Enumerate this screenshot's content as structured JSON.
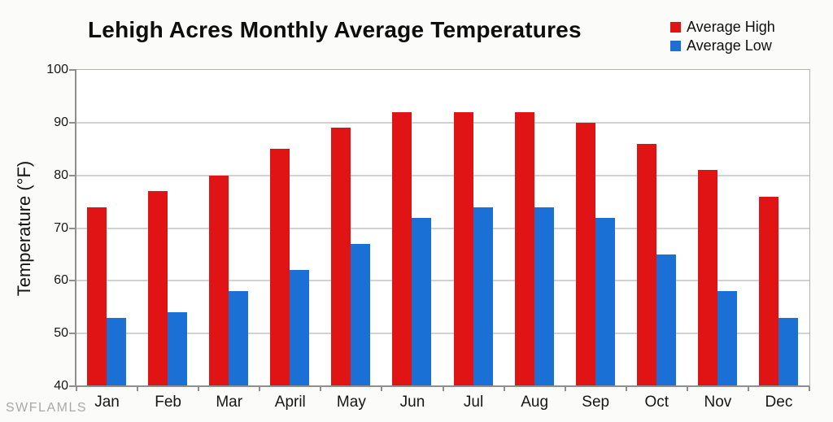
{
  "chart_data": {
    "type": "bar",
    "title": "Lehigh Acres Monthly Average Temperatures",
    "ylabel": "Temperature (°F)",
    "xlabel": "",
    "categories": [
      "Jan",
      "Feb",
      "Mar",
      "April",
      "May",
      "Jun",
      "Jul",
      "Aug",
      "Sep",
      "Oct",
      "Nov",
      "Dec"
    ],
    "series": [
      {
        "name": "Average High",
        "color": "#e01414",
        "values": [
          74,
          77,
          80,
          85,
          89,
          92,
          92,
          92,
          90,
          86,
          81,
          76
        ]
      },
      {
        "name": "Average Low",
        "color": "#1b70d6",
        "values": [
          53,
          54,
          58,
          62,
          67,
          72,
          74,
          74,
          72,
          65,
          58,
          53
        ]
      }
    ],
    "ylim": [
      40,
      100
    ],
    "ytick_step": 10,
    "grid": "horizontal",
    "legend_position": "top-right"
  },
  "watermark": "SWFLAMLS"
}
